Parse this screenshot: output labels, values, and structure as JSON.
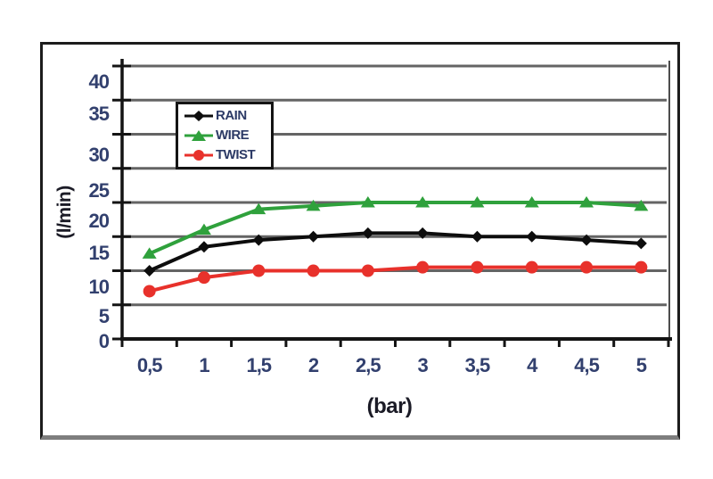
{
  "chart_data": {
    "type": "line",
    "title": "",
    "xlabel": "(bar)",
    "ylabel": "(l/min)",
    "x_values": [
      0.5,
      1,
      1.5,
      2,
      2.5,
      3,
      3.5,
      4,
      4.5,
      5
    ],
    "x_tick_labels": [
      "0,5",
      "1",
      "1,5",
      "2",
      "2,5",
      "3",
      "3,5",
      "4",
      "4,5",
      "5"
    ],
    "y_ticks": [
      0,
      5,
      10,
      15,
      20,
      25,
      30,
      35,
      40
    ],
    "y_tick_labels": [
      "0",
      "5",
      "10",
      "15",
      "20",
      "25",
      "30",
      "35",
      "40"
    ],
    "ylim": [
      0,
      41
    ],
    "grid": "horizontal-only",
    "legend_position": "inside-top-left",
    "series": [
      {
        "name": "RAIN",
        "marker": "diamond",
        "color": "#0d0d0d",
        "values": [
          10,
          13.5,
          14.5,
          15,
          15.5,
          15.5,
          15,
          15,
          14.5,
          14
        ]
      },
      {
        "name": "WIRE",
        "marker": "triangle",
        "color": "#2fa13c",
        "values": [
          12.5,
          16,
          19,
          19.5,
          20,
          20,
          20,
          20,
          20,
          19.5
        ]
      },
      {
        "name": "TWIST",
        "marker": "circle",
        "color": "#e8312b",
        "values": [
          7,
          9,
          10,
          10,
          10,
          10.5,
          10.5,
          10.5,
          10.5,
          10.5
        ]
      }
    ]
  },
  "styles": {
    "background": "#ffffff",
    "gridline_color": "#646464",
    "axis_color": "#141414",
    "plot_right_border_color": "#4d4d4d",
    "tick_label_color": "#32406e",
    "axis_title_color": "#1b1b26",
    "legend_text_color": "#2c3a66",
    "frame_border_color": "#1c1c1c",
    "frame_bottom_color": "#7e7e7e"
  }
}
